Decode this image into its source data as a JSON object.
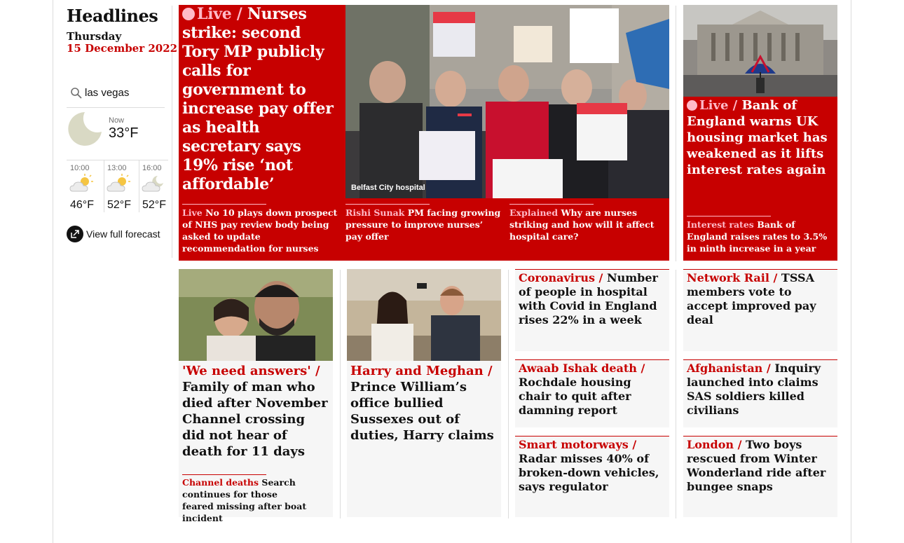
{
  "section": {
    "title": "Headlines",
    "day": "Thursday",
    "date": "15 December 2022"
  },
  "weather": {
    "search_value": "las vegas",
    "now_label": "Now",
    "now_temp": "33°F",
    "forecast": [
      {
        "time": "10:00",
        "temp": "46°F"
      },
      {
        "time": "13:00",
        "temp": "52°F"
      },
      {
        "time": "16:00",
        "temp": "52°F"
      }
    ],
    "full_forecast_label": "View full forecast"
  },
  "lead": {
    "live_kicker": "Live /",
    "headline": "Nurses strike: second Tory MP publicly calls for government to increase pay offer as health secretary says 19% rise ‘not affordable’",
    "photo_caption": "Belfast City hospital",
    "sublinks": [
      {
        "kicker": "Live",
        "text": "No 10 plays down prospect of NHS pay review body being asked to update recommendation for nurses"
      },
      {
        "kicker": "Rishi Sunak",
        "text": "PM facing growing pressure to improve nurses’ pay offer"
      },
      {
        "kicker": "Explained",
        "text": "Why are nurses striking and how will it affect hospital care?"
      }
    ]
  },
  "boe": {
    "live_kicker": "Live /",
    "headline": "Bank of England warns UK housing market has weakened as it lifts interest rates again",
    "sublink": {
      "kicker": "Interest rates",
      "text": "Bank of England raises rates to 3.5% in ninth increase in a year"
    }
  },
  "channel": {
    "kicker": "'We need answers' /",
    "headline": "Family of man who died after November Channel crossing did not hear of death for 11 days",
    "sublink": {
      "kicker": "Channel deaths",
      "text": "Search continues for those feared missing after boat incident"
    }
  },
  "harry": {
    "kicker": "Harry and Meghan /",
    "headline": "Prince William’s office bullied Sussexes out of duties, Harry claims"
  },
  "small_cards": [
    {
      "kicker": "Coronavirus /",
      "headline": "Number of people in hospital with Covid in England rises 22% in a week"
    },
    {
      "kicker": "Network Rail /",
      "headline": "TSSA members vote to accept improved pay deal"
    },
    {
      "kicker": "Awaab Ishak death /",
      "headline": "Rochdale housing chair to quit after damning report"
    },
    {
      "kicker": "Afghanistan /",
      "headline": "Inquiry launched into claims SAS soldiers killed civilians"
    },
    {
      "kicker": "Smart motorways /",
      "headline": "Radar misses 40% of broken-down vehicles, says regulator"
    },
    {
      "kicker": "London /",
      "headline": "Two boys rescued from Winter Wonderland ride after bungee snaps"
    }
  ],
  "colors": {
    "news_red": "#c70000",
    "live_pink": "#ffbac8",
    "card_bg": "#f6f6f6"
  }
}
